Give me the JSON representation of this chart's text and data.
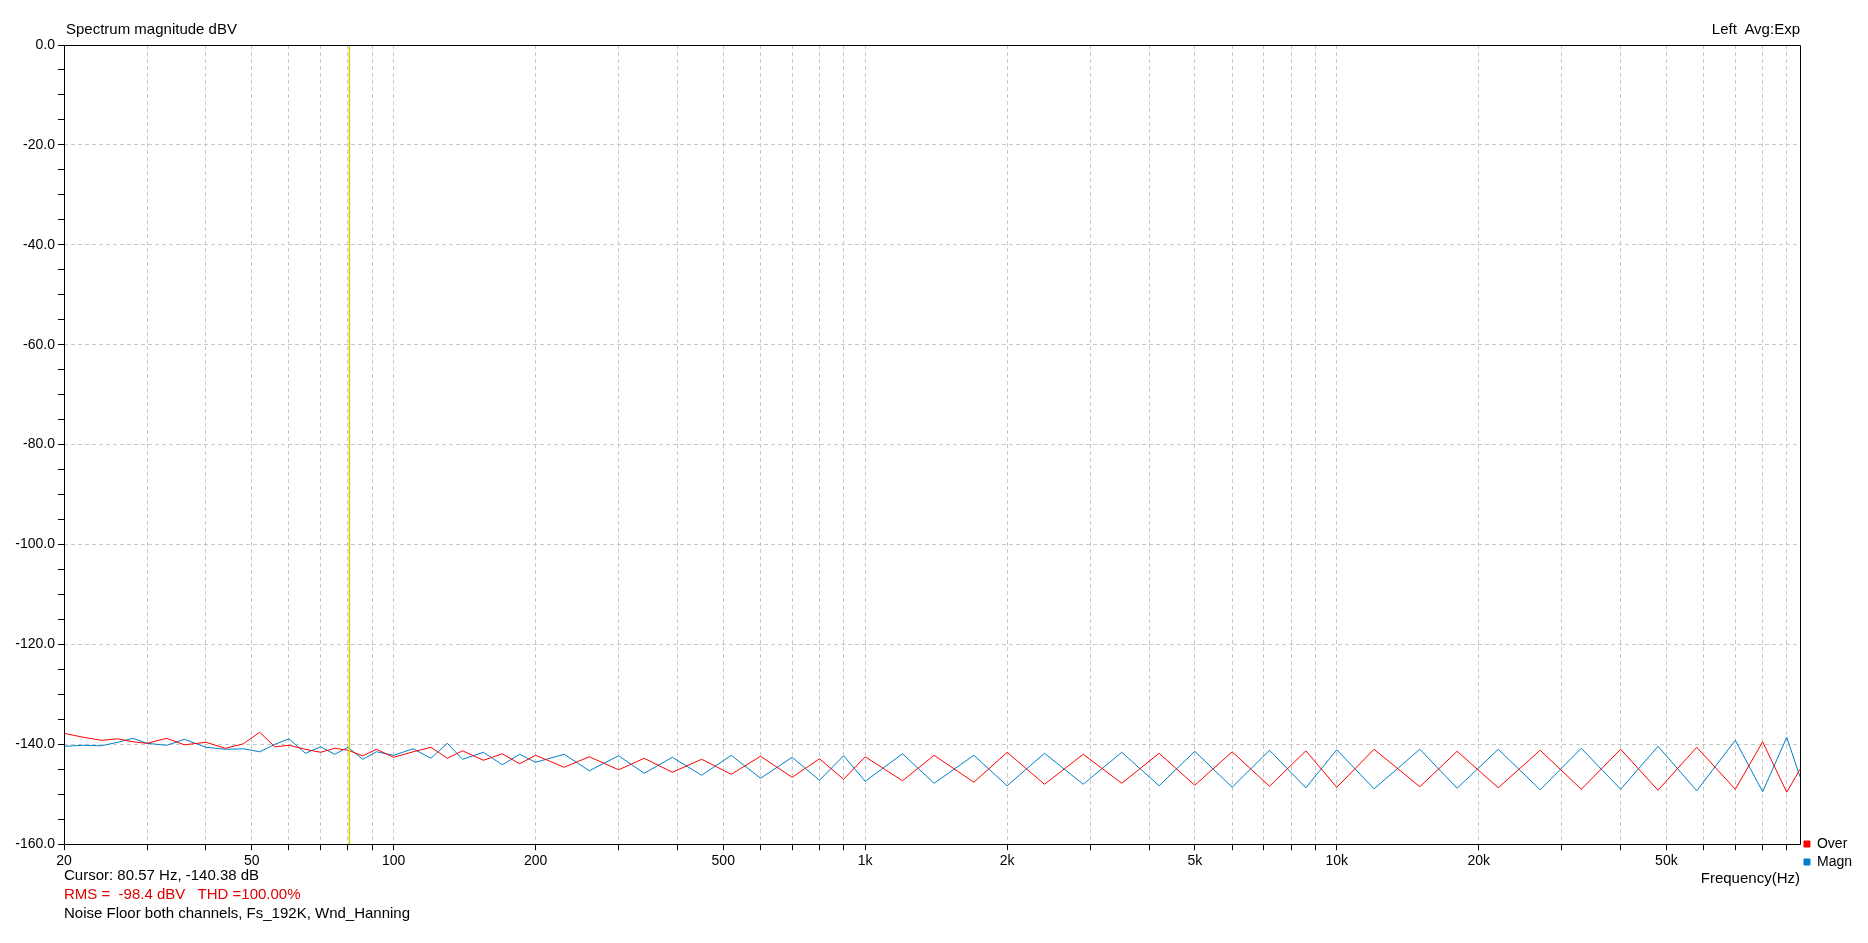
{
  "chart_data": {
    "type": "line",
    "title": "Spectrum magnitude dBV",
    "xlabel": "Frequency(Hz)",
    "annotations": [
      "Left  Avg:Exp",
      "Cursor: 80.57 Hz, -140.38 dB",
      "RMS =  -98.4 dBV   THD =100.00%",
      "Noise Floor both channels, Fs_192K, Wnd_Hanning"
    ],
    "log": "x",
    "grid": true,
    "legend": "bottom right",
    "marker": "none",
    "line_style": "solid",
    "xlim": [
      20,
      96000
    ],
    "xticks": [
      20,
      {
        "value": 30,
        "label": null
      },
      {
        "value": 40,
        "label": null
      },
      50,
      {
        "value": 60,
        "label": null
      },
      {
        "value": 70,
        "label": null
      },
      {
        "value": 80,
        "label": null
      },
      {
        "value": 90,
        "label": null
      },
      100,
      200,
      {
        "value": 300,
        "label": null
      },
      {
        "value": 400,
        "label": null
      },
      500,
      {
        "value": 600,
        "label": null
      },
      {
        "value": 700,
        "label": null
      },
      {
        "value": 800,
        "label": null
      },
      {
        "value": 900,
        "label": null
      },
      {
        "value": 1000,
        "label": "1k"
      },
      {
        "value": 2000,
        "label": "2k"
      },
      {
        "value": 3000,
        "label": null
      },
      {
        "value": 4000,
        "label": null
      },
      {
        "value": 5000,
        "label": "5k"
      },
      {
        "value": 6000,
        "label": null
      },
      {
        "value": 7000,
        "label": null
      },
      {
        "value": 8000,
        "label": null
      },
      {
        "value": 9000,
        "label": null
      },
      {
        "value": 10000,
        "label": "10k"
      },
      {
        "value": 20000,
        "label": "20k"
      },
      {
        "value": 30000,
        "label": null
      },
      {
        "value": 40000,
        "label": null
      },
      {
        "value": 50000,
        "label": "50k"
      },
      {
        "value": 60000,
        "label": null
      },
      {
        "value": 70000,
        "label": null
      },
      {
        "value": 80000,
        "label": null
      },
      {
        "value": 90000,
        "label": null
      }
    ],
    "ylim": [
      -160,
      0
    ],
    "yticks": [
      {
        "value": 0,
        "label": "0.0"
      },
      {
        "value": -5,
        "label": null
      },
      {
        "value": -10,
        "label": null
      },
      {
        "value": -15,
        "label": null
      },
      {
        "value": -20,
        "label": "-20.0"
      },
      {
        "value": -25,
        "label": null
      },
      {
        "value": -30,
        "label": null
      },
      {
        "value": -35,
        "label": null
      },
      {
        "value": -40,
        "label": "-40.0"
      },
      {
        "value": -45,
        "label": null
      },
      {
        "value": -50,
        "label": null
      },
      {
        "value": -55,
        "label": null
      },
      {
        "value": -60,
        "label": "-60.0"
      },
      {
        "value": -65,
        "label": null
      },
      {
        "value": -70,
        "label": null
      },
      {
        "value": -75,
        "label": null
      },
      {
        "value": -80,
        "label": "-80.0"
      },
      {
        "value": -85,
        "label": null
      },
      {
        "value": -90,
        "label": null
      },
      {
        "value": -95,
        "label": null
      },
      {
        "value": -100,
        "label": "-100.0"
      },
      {
        "value": -105,
        "label": null
      },
      {
        "value": -110,
        "label": null
      },
      {
        "value": -115,
        "label": null
      },
      {
        "value": -120,
        "label": "-120.0"
      },
      {
        "value": -125,
        "label": null
      },
      {
        "value": -130,
        "label": null
      },
      {
        "value": -135,
        "label": null
      },
      {
        "value": -140,
        "label": "-140.0"
      },
      {
        "value": -145,
        "label": null
      },
      {
        "value": -150,
        "label": null
      },
      {
        "value": -155,
        "label": null
      },
      {
        "value": -160,
        "label": "-160.0"
      }
    ],
    "ref_lines": [
      {
        "axis": "x",
        "value": 80.57,
        "color": "#d4d400"
      }
    ],
    "x": [
      20,
      22,
      24,
      26,
      28,
      30,
      33,
      36,
      40,
      44,
      48,
      52,
      56,
      60,
      65,
      70,
      75,
      80,
      86,
      92,
      100,
      110,
      120,
      130,
      140,
      155,
      170,
      185,
      200,
      230,
      260,
      300,
      340,
      390,
      450,
      520,
      600,
      700,
      800,
      900,
      1000,
      1200,
      1400,
      1700,
      2000,
      2400,
      2900,
      3500,
      4200,
      5000,
      6000,
      7200,
      8600,
      10000,
      12000,
      15000,
      18000,
      22000,
      27000,
      33000,
      40000,
      48000,
      58000,
      70000,
      80000,
      90000,
      96000
    ],
    "series": [
      {
        "name": "Over",
        "color": "#ff0000",
        "values": [
          -137.8,
          -138.6,
          -139.2,
          -138.9,
          -139.5,
          -139.8,
          -138.8,
          -140.1,
          -139.6,
          -140.8,
          -139.9,
          -137.6,
          -140.5,
          -140.2,
          -141.0,
          -141.6,
          -140.8,
          -141.2,
          -142.3,
          -141.0,
          -142.6,
          -141.5,
          -140.6,
          -142.8,
          -141.3,
          -143.2,
          -141.9,
          -143.9,
          -142.2,
          -144.6,
          -142.5,
          -145.1,
          -142.8,
          -145.6,
          -143.0,
          -146.0,
          -142.4,
          -146.6,
          -142.9,
          -147.0,
          -142.5,
          -147.3,
          -142.2,
          -147.6,
          -141.6,
          -148.0,
          -142.0,
          -147.8,
          -141.8,
          -148.2,
          -141.5,
          -148.4,
          -141.3,
          -148.6,
          -141.0,
          -148.5,
          -141.4,
          -148.7,
          -141.2,
          -149.0,
          -141.0,
          -149.2,
          -140.6,
          -149.0,
          -139.5,
          -149.6,
          -145.0
        ]
      },
      {
        "name": "Magn",
        "color": "#0080c8",
        "values": [
          -140.4,
          -140.2,
          -140.3,
          -139.6,
          -138.8,
          -139.8,
          -140.2,
          -139.0,
          -140.6,
          -141.0,
          -140.9,
          -141.5,
          -140.0,
          -138.9,
          -141.8,
          -140.5,
          -142.0,
          -140.6,
          -143.0,
          -141.5,
          -142.2,
          -140.9,
          -142.8,
          -139.8,
          -143.0,
          -141.6,
          -144.1,
          -142.0,
          -143.6,
          -142.0,
          -145.3,
          -142.3,
          -145.8,
          -142.6,
          -146.2,
          -142.2,
          -146.8,
          -142.6,
          -147.2,
          -142.3,
          -147.4,
          -141.9,
          -147.8,
          -142.2,
          -148.3,
          -141.8,
          -148.0,
          -141.6,
          -148.3,
          -141.4,
          -148.6,
          -141.2,
          -148.7,
          -141.1,
          -148.9,
          -141.0,
          -148.8,
          -141.0,
          -149.1,
          -140.8,
          -149.0,
          -140.4,
          -149.3,
          -139.2,
          -149.5,
          -138.6,
          -146.5
        ]
      }
    ]
  }
}
